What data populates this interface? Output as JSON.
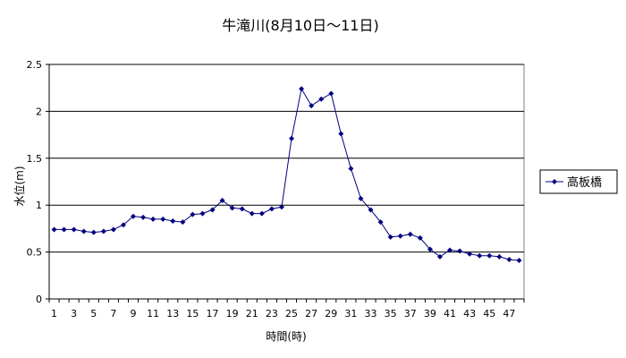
{
  "chart_data": {
    "type": "line",
    "title": "牛滝川(8月10日〜11日)",
    "xlabel": "時間(時)",
    "ylabel": "水位(m)",
    "ylim": [
      0,
      2.5
    ],
    "yticks": [
      "0",
      "0.5",
      "1",
      "1.5",
      "2",
      "2.5"
    ],
    "x": [
      1,
      2,
      3,
      4,
      5,
      6,
      7,
      8,
      9,
      10,
      11,
      12,
      13,
      14,
      15,
      16,
      17,
      18,
      19,
      20,
      21,
      22,
      23,
      24,
      25,
      26,
      27,
      28,
      29,
      30,
      31,
      32,
      33,
      34,
      35,
      36,
      37,
      38,
      39,
      40,
      41,
      42,
      43,
      44,
      45,
      46,
      47,
      48
    ],
    "xtick_labels": [
      "1",
      "3",
      "5",
      "7",
      "9",
      "11",
      "13",
      "15",
      "17",
      "19",
      "21",
      "23",
      "25",
      "27",
      "29",
      "31",
      "33",
      "35",
      "37",
      "39",
      "41",
      "43",
      "45",
      "47"
    ],
    "grid": "horizontal",
    "legend_position": "right",
    "series_color": "#000080",
    "series": [
      {
        "name": "高板橋",
        "values": [
          0.74,
          0.74,
          0.74,
          0.72,
          0.71,
          0.72,
          0.74,
          0.79,
          0.88,
          0.87,
          0.85,
          0.85,
          0.83,
          0.82,
          0.9,
          0.91,
          0.95,
          1.05,
          0.97,
          0.96,
          0.91,
          0.91,
          0.96,
          0.98,
          1.71,
          2.24,
          2.06,
          2.13,
          2.19,
          1.76,
          1.39,
          1.07,
          0.95,
          0.82,
          0.66,
          0.67,
          0.69,
          0.65,
          0.53,
          0.45,
          0.52,
          0.51,
          0.48,
          0.46,
          0.46,
          0.45,
          0.42,
          0.41
        ]
      }
    ]
  }
}
